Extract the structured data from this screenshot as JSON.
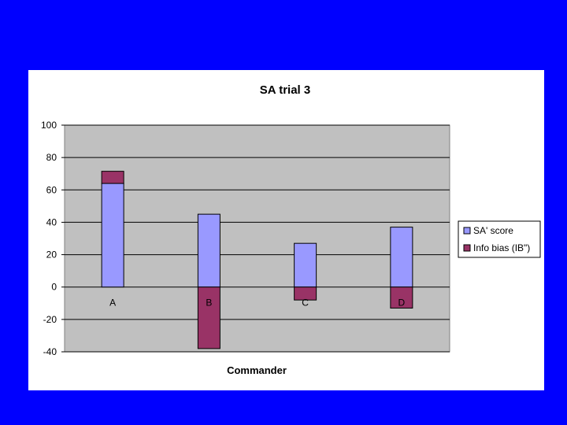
{
  "colors": {
    "background": "#0000ff",
    "panel": "#ffffff",
    "plot_area": "#c0c0c0",
    "sa_score": "#9999ff",
    "info_bias": "#993366",
    "gridline": "#000000"
  },
  "chart_data": {
    "type": "bar",
    "stacked": true,
    "title": "SA trial 3",
    "xlabel": "Commander",
    "ylabel": "",
    "categories": [
      "A",
      "B",
      "C",
      "D"
    ],
    "series": [
      {
        "name": "SA' score",
        "values": [
          64,
          45,
          27,
          37
        ]
      },
      {
        "name": "Info bias (IB\")",
        "values": [
          7.5,
          -38,
          -8,
          -13
        ]
      }
    ],
    "ylim": [
      -40,
      100
    ],
    "yticks": [
      100,
      80,
      60,
      40,
      20,
      0,
      -20,
      -40
    ],
    "grid": true,
    "legend": "right"
  }
}
